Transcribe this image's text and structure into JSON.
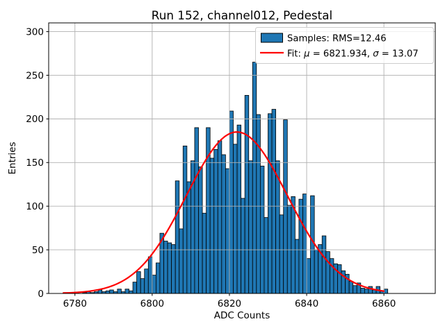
{
  "title": "Run 152, channel012, Pedestal",
  "axes": {
    "xlabel": "ADC Counts",
    "ylabel": "Entries",
    "x_ticks": [
      6780,
      6800,
      6820,
      6840,
      6860
    ],
    "y_ticks": [
      0,
      50,
      100,
      150,
      200,
      250,
      300
    ]
  },
  "legend": {
    "samples_label": "Samples: RMS=12.46",
    "fit_prefix": "Fit: ",
    "fit_mu_symbol": "μ",
    "fit_mu_rest": " = 6821.934, ",
    "fit_sigma_symbol": "σ",
    "fit_sigma_rest": " = 13.07"
  },
  "chart_data": {
    "type": "bar",
    "subtype": "histogram",
    "title": "Run 152, channel012, Pedestal",
    "xlabel": "ADC Counts",
    "ylabel": "Entries",
    "xlim": [
      6773.2,
      6873.3
    ],
    "ylim": [
      0,
      310
    ],
    "grid": true,
    "legend_position": "upper right",
    "bar_color": "#1f77b4",
    "bar_edge_color": "#000000",
    "fit_color": "#ff0000",
    "grid_color": "#b0b0b0",
    "bin_start": 6777,
    "bin_width": 1,
    "counts": [
      1,
      1,
      0,
      1,
      0,
      1,
      2,
      1,
      2,
      4,
      2,
      3,
      4,
      2,
      5,
      2,
      5,
      3,
      13,
      25,
      17,
      28,
      42,
      21,
      35,
      69,
      60,
      58,
      56,
      129,
      74,
      169,
      128,
      152,
      190,
      145,
      92,
      190,
      155,
      165,
      175,
      159,
      143,
      209,
      171,
      193,
      109,
      227,
      152,
      265,
      205,
      146,
      87,
      206,
      211,
      152,
      90,
      199,
      101,
      111,
      62,
      108,
      114,
      40,
      112,
      50,
      56,
      66,
      48,
      40,
      34,
      33,
      26,
      22,
      14,
      9,
      12,
      6,
      5,
      8,
      4,
      8,
      3,
      5
    ],
    "fit": {
      "mu": 6821.934,
      "sigma": 13.07,
      "amplitude": 185,
      "x_min": 6777,
      "x_max": 6860
    },
    "stats": {
      "rms": 12.46
    }
  }
}
